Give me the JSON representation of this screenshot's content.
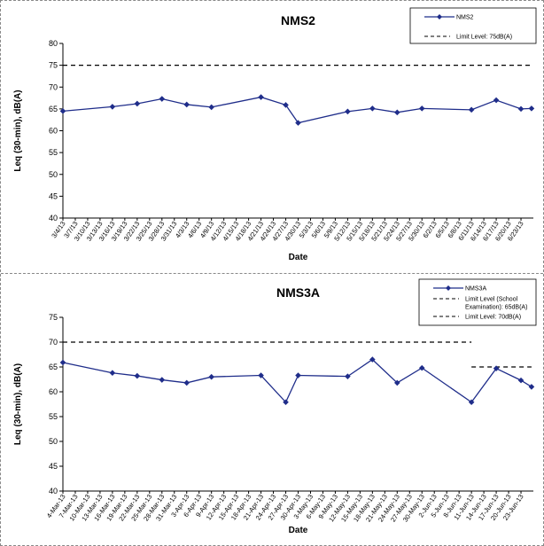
{
  "chart_data": [
    {
      "type": "line",
      "title": "NMS2",
      "xlabel": "Date",
      "ylabel": "Leq (30-min), dB(A)",
      "ylim": [
        40,
        80
      ],
      "yticks": [
        40,
        45,
        50,
        55,
        60,
        65,
        70,
        75,
        80
      ],
      "grid": false,
      "legend_position": "top-right",
      "categories": [
        "3/4/13",
        "3/7/13",
        "3/10/13",
        "3/13/13",
        "3/16/13",
        "3/19/13",
        "3/22/13",
        "3/25/13",
        "3/28/13",
        "3/31/13",
        "4/3/13",
        "4/6/13",
        "4/9/13",
        "4/12/13",
        "4/15/13",
        "4/18/13",
        "4/21/13",
        "4/24/13",
        "4/27/13",
        "4/30/13",
        "5/3/13",
        "5/6/13",
        "5/9/13",
        "5/12/13",
        "5/15/13",
        "5/18/13",
        "5/21/13",
        "5/24/13",
        "5/27/13",
        "5/30/13",
        "6/2/13",
        "6/5/13",
        "6/8/13",
        "6/11/13",
        "6/14/13",
        "6/17/13",
        "6/20/13",
        "6/23/13"
      ],
      "series": [
        {
          "name": "NMS2",
          "color": "#1f2d8a",
          "points": [
            {
              "x": "3/4/13",
              "y": 64.5
            },
            {
              "x": "3/16/13",
              "y": 65.5
            },
            {
              "x": "3/22/13",
              "y": 66.2
            },
            {
              "x": "3/28/13",
              "y": 67.3
            },
            {
              "x": "4/3/13",
              "y": 66.0
            },
            {
              "x": "4/9/13",
              "y": 65.4
            },
            {
              "x": "4/21/13",
              "y": 67.7
            },
            {
              "x": "4/27/13",
              "y": 65.9
            },
            {
              "x": "4/30/13",
              "y": 61.8
            },
            {
              "x": "5/12/13",
              "y": 64.4
            },
            {
              "x": "5/18/13",
              "y": 65.1
            },
            {
              "x": "5/24/13",
              "y": 64.2
            },
            {
              "x": "5/30/13",
              "y": 65.1
            },
            {
              "x": "6/11/13",
              "y": 64.8
            },
            {
              "x": "6/17/13",
              "y": 67.0
            },
            {
              "x": "6/23/13",
              "y": 65.0
            },
            {
              "x": "6/26/13",
              "y": 65.1
            }
          ]
        }
      ],
      "limits": [
        {
          "name": "Limit Level: 75dB(A)",
          "value": 75,
          "from": "3/4/13",
          "to": "6/26/13"
        }
      ]
    },
    {
      "type": "line",
      "title": "NMS3A",
      "xlabel": "Date",
      "ylabel": "Leq (30-min), dB(A)",
      "ylim": [
        40,
        75
      ],
      "yticks": [
        40,
        45,
        50,
        55,
        60,
        65,
        70,
        75
      ],
      "grid": false,
      "legend_position": "top-right",
      "categories": [
        "4-Mar-13",
        "7-Mar-13",
        "10-Mar-13",
        "13-Mar-13",
        "16-Mar-13",
        "19-Mar-13",
        "22-Mar-13",
        "25-Mar-13",
        "28-Mar-13",
        "31-Mar-13",
        "3-Apr-13",
        "6-Apr-13",
        "9-Apr-13",
        "12-Apr-13",
        "15-Apr-13",
        "18-Apr-13",
        "21-Apr-13",
        "24-Apr-13",
        "27-Apr-13",
        "30-Apr-13",
        "3-May-13",
        "6-May-13",
        "9-May-13",
        "12-May-13",
        "15-May-13",
        "18-May-13",
        "21-May-13",
        "24-May-13",
        "27-May-13",
        "30-May-13",
        "2-Jun-13",
        "5-Jun-13",
        "8-Jun-13",
        "11-Jun-13",
        "14-Jun-13",
        "17-Jun-13",
        "20-Jun-13",
        "23-Jun-13"
      ],
      "series": [
        {
          "name": "NMS3A",
          "color": "#1f2d8a",
          "points": [
            {
              "x": "4-Mar-13",
              "y": 65.9
            },
            {
              "x": "16-Mar-13",
              "y": 63.8
            },
            {
              "x": "22-Mar-13",
              "y": 63.2
            },
            {
              "x": "28-Mar-13",
              "y": 62.4
            },
            {
              "x": "3-Apr-13",
              "y": 61.8
            },
            {
              "x": "9-Apr-13",
              "y": 63.0
            },
            {
              "x": "21-Apr-13",
              "y": 63.3
            },
            {
              "x": "27-Apr-13",
              "y": 57.9
            },
            {
              "x": "30-Apr-13",
              "y": 63.3
            },
            {
              "x": "12-May-13",
              "y": 63.1
            },
            {
              "x": "18-May-13",
              "y": 66.5
            },
            {
              "x": "24-May-13",
              "y": 61.8
            },
            {
              "x": "30-May-13",
              "y": 64.8
            },
            {
              "x": "11-Jun-13",
              "y": 57.9
            },
            {
              "x": "17-Jun-13",
              "y": 64.7
            },
            {
              "x": "23-Jun-13",
              "y": 62.3
            },
            {
              "x": "29-Jun-13",
              "y": 61.0
            }
          ]
        }
      ],
      "limits": [
        {
          "name": "Limit Level (School Examination): 65dB(A)",
          "value": 65,
          "from": "11-Jun-13",
          "to": "29-Jun-13"
        },
        {
          "name": "Limit Level: 70dB(A)",
          "value": 70,
          "from": "4-Mar-13",
          "to": "11-Jun-13"
        }
      ]
    }
  ]
}
